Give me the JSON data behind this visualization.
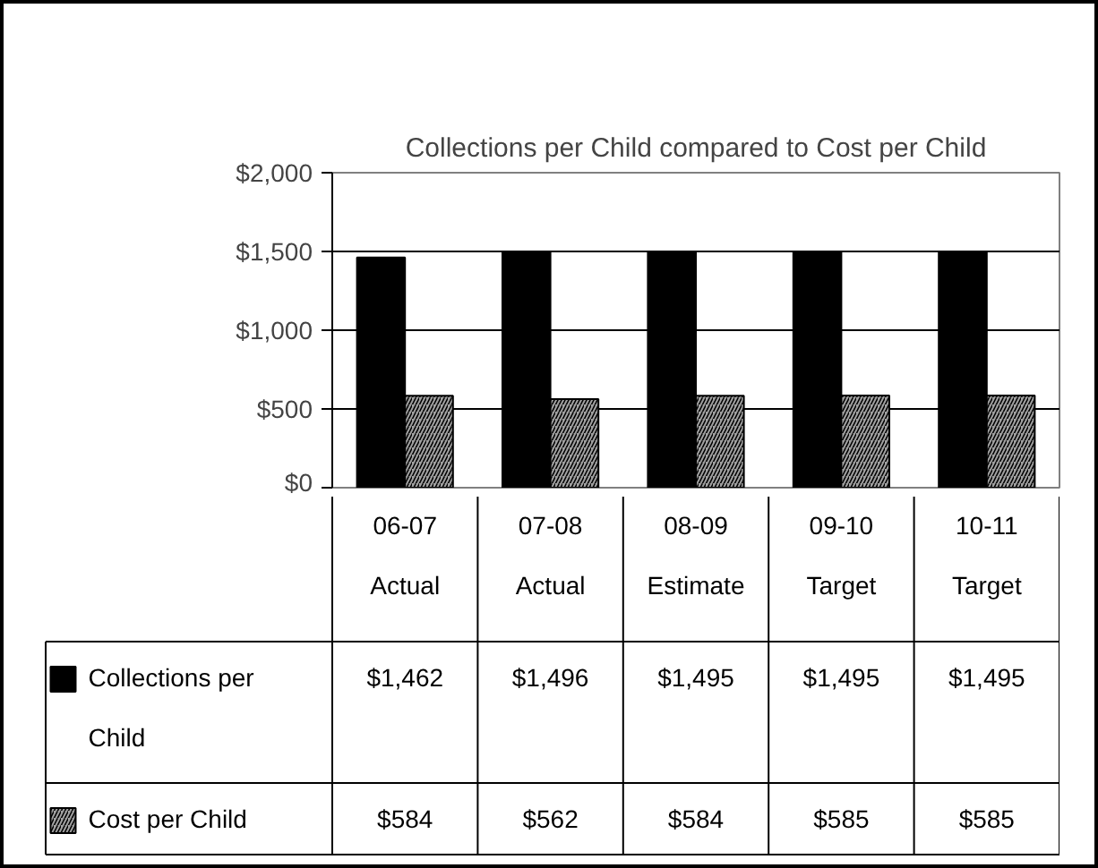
{
  "chart_data": {
    "type": "bar",
    "title": "Collections per Child compared to Cost per Child",
    "categories": [
      "06-07 Actual",
      "07-08 Actual",
      "08-09 Estimate",
      "09-10 Target",
      "10-11 Target"
    ],
    "series": [
      {
        "name": "Collections per Child",
        "color": "#000000",
        "values": [
          1462,
          1496,
          1495,
          1495,
          1495
        ],
        "value_labels": [
          "$1,462",
          "$1,496",
          "$1,495",
          "$1,495",
          "$1,495"
        ]
      },
      {
        "name": "Cost per Child",
        "color": "#a0a0a0",
        "values": [
          584,
          562,
          584,
          585,
          585
        ],
        "value_labels": [
          "$584",
          "$562",
          "$584",
          "$585",
          "$585"
        ]
      }
    ],
    "ylim": [
      0,
      2000
    ],
    "yticks": [
      {
        "value": 0,
        "label": "$0"
      },
      {
        "value": 500,
        "label": "$500"
      },
      {
        "value": 1000,
        "label": "$1,000"
      },
      {
        "value": 1500,
        "label": "$1,500"
      },
      {
        "value": 2000,
        "label": "$2,000"
      }
    ],
    "grid": "y"
  }
}
